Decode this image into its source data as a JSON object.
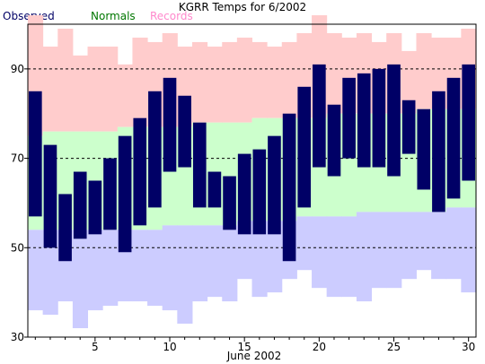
{
  "header": {
    "title": "KGRR Temps for 6/2002"
  },
  "legend": {
    "observed": "Observed",
    "normals": "Normals",
    "records": "Records"
  },
  "colors": {
    "observed": "#000066",
    "normals_band": "#ccffcc",
    "normals_text": "#007700",
    "records_band": "#ffcccc",
    "records_text": "#ff88cc",
    "record_low_band": "#ccccff",
    "grid": "#000000"
  },
  "chart_data": {
    "type": "bar",
    "title": "KGRR Temps for 6/2002",
    "xlabel": "June 2002",
    "ylabel": "",
    "ylim": [
      30,
      100
    ],
    "yticks": [
      30,
      50,
      70,
      90
    ],
    "xticks": [
      5,
      10,
      15,
      20,
      25,
      30
    ],
    "gridlines_y": [
      50,
      70,
      90
    ],
    "days": [
      1,
      2,
      3,
      4,
      5,
      6,
      7,
      8,
      9,
      10,
      11,
      12,
      13,
      14,
      15,
      16,
      17,
      18,
      19,
      20,
      21,
      22,
      23,
      24,
      25,
      26,
      27,
      28,
      29,
      30
    ],
    "series": [
      {
        "name": "Observed",
        "high": [
          85,
          73,
          62,
          67,
          65,
          70,
          75,
          79,
          85,
          88,
          84,
          78,
          67,
          66,
          71,
          72,
          75,
          80,
          86,
          91,
          82,
          88,
          89,
          90,
          91,
          83,
          81,
          85,
          88,
          91
        ],
        "low": [
          57,
          50,
          47,
          52,
          53,
          54,
          49,
          55,
          59,
          67,
          68,
          59,
          59,
          54,
          53,
          53,
          53,
          47,
          59,
          68,
          66,
          70,
          68,
          68,
          66,
          71,
          63,
          58,
          61,
          65
        ]
      },
      {
        "name": "Normals",
        "high": [
          75,
          76,
          76,
          76,
          76,
          76,
          77,
          77,
          77,
          77,
          77,
          78,
          78,
          78,
          78,
          79,
          79,
          79,
          79,
          79,
          80,
          80,
          80,
          80,
          80,
          80,
          81,
          81,
          81,
          81
        ],
        "low": [
          54,
          54,
          54,
          54,
          54,
          54,
          54,
          54,
          54,
          55,
          55,
          55,
          55,
          55,
          56,
          56,
          56,
          56,
          57,
          57,
          57,
          57,
          58,
          58,
          58,
          58,
          58,
          58,
          59,
          59
        ]
      },
      {
        "name": "Records",
        "high": [
          102,
          95,
          99,
          93,
          95,
          95,
          91,
          97,
          96,
          98,
          95,
          96,
          95,
          96,
          97,
          96,
          95,
          96,
          98,
          102,
          98,
          97,
          98,
          96,
          98,
          94,
          98,
          97,
          97,
          99
        ],
        "low": [
          36,
          35,
          38,
          32,
          36,
          37,
          38,
          38,
          37,
          36,
          33,
          38,
          39,
          38,
          43,
          39,
          40,
          43,
          45,
          41,
          39,
          39,
          38,
          41,
          41,
          43,
          45,
          43,
          43,
          40
        ]
      }
    ]
  }
}
